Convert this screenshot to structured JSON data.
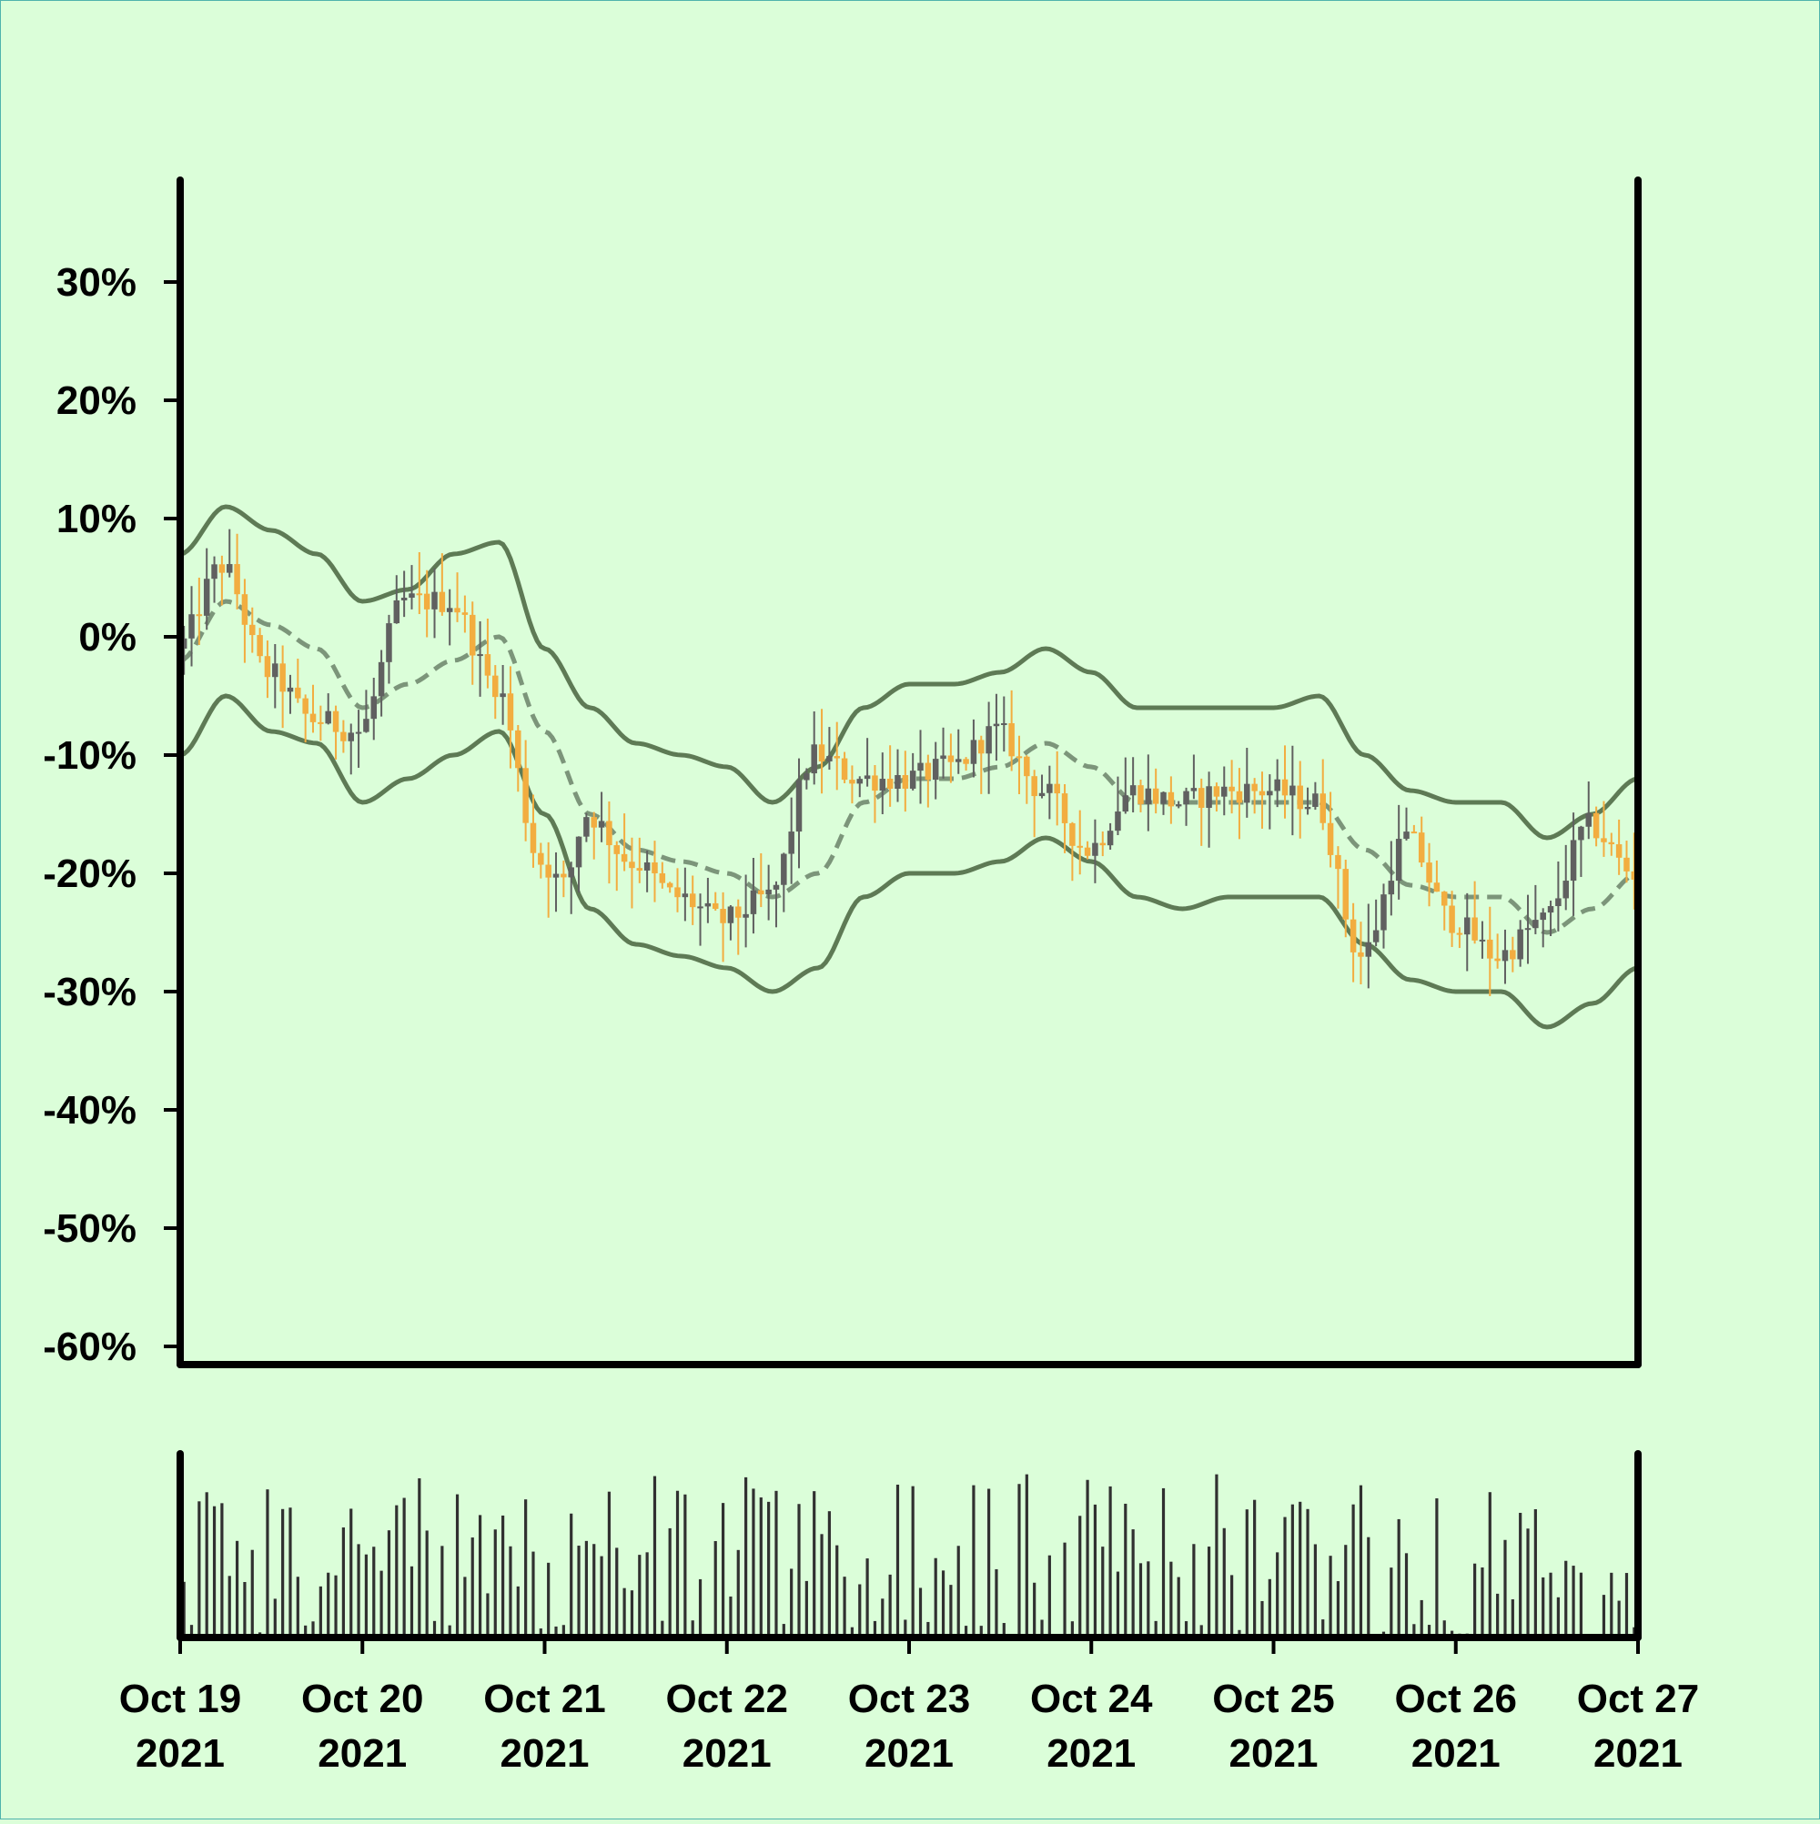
{
  "colors": {
    "background": "#dbfed9",
    "border": "#4fb3ad",
    "axis": "#000000",
    "up_candle": "#606060",
    "down_candle": "#f2ad40",
    "band": "#5e7a55",
    "band_mid": "#7c957a",
    "volume": "#303030"
  },
  "chart_data": {
    "type": "candlestick",
    "title": "",
    "xlabel": "",
    "ylabel": "",
    "y_unit": "percent change",
    "ylim": [
      -60,
      38
    ],
    "y_ticks": [
      "30%",
      "20%",
      "10%",
      "0%",
      "-10%",
      "-20%",
      "-30%",
      "-40%",
      "-50%",
      "-60%"
    ],
    "y_tick_values": [
      30,
      20,
      10,
      0,
      -10,
      -20,
      -30,
      -40,
      -50,
      -60
    ],
    "x_range": [
      "2021-10-19 00:00",
      "2021-10-27 00:00"
    ],
    "x_tick_labels": [
      {
        "month_day": "Oct 19",
        "year": "2021"
      },
      {
        "month_day": "Oct 20",
        "year": "2021"
      },
      {
        "month_day": "Oct 21",
        "year": "2021"
      },
      {
        "month_day": "Oct 22",
        "year": "2021"
      },
      {
        "month_day": "Oct 23",
        "year": "2021"
      },
      {
        "month_day": "Oct 24",
        "year": "2021"
      },
      {
        "month_day": "Oct 25",
        "year": "2021"
      },
      {
        "month_day": "Oct 26",
        "year": "2021"
      },
      {
        "month_day": "Oct 27",
        "year": "2021"
      }
    ],
    "candle_interval_hours": 1,
    "close_path": [
      [
        "2021-10-19 00:00",
        -1
      ],
      [
        "2021-10-19 06:00",
        6
      ],
      [
        "2021-10-19 12:00",
        -3
      ],
      [
        "2021-10-19 18:00",
        -7
      ],
      [
        "2021-10-20 00:00",
        -8
      ],
      [
        "2021-10-20 06:00",
        3
      ],
      [
        "2021-10-20 12:00",
        3
      ],
      [
        "2021-10-20 18:00",
        -4
      ],
      [
        "2021-10-21 00:00",
        -19
      ],
      [
        "2021-10-21 03:00",
        -21
      ],
      [
        "2021-10-21 06:00",
        -15
      ],
      [
        "2021-10-21 12:00",
        -19
      ],
      [
        "2021-10-21 18:00",
        -22
      ],
      [
        "2021-10-22 00:00",
        -24
      ],
      [
        "2021-10-22 06:00",
        -22
      ],
      [
        "2021-10-22 12:00",
        -10
      ],
      [
        "2021-10-22 18:00",
        -12
      ],
      [
        "2021-10-23 00:00",
        -12
      ],
      [
        "2021-10-23 06:00",
        -11
      ],
      [
        "2021-10-23 12:00",
        -8
      ],
      [
        "2021-10-23 18:00",
        -13
      ],
      [
        "2021-10-24 00:00",
        -18
      ],
      [
        "2021-10-24 06:00",
        -13
      ],
      [
        "2021-10-24 12:00",
        -14
      ],
      [
        "2021-10-24 18:00",
        -13
      ],
      [
        "2021-10-25 00:00",
        -13
      ],
      [
        "2021-10-25 06:00",
        -14
      ],
      [
        "2021-10-25 12:00",
        -27
      ],
      [
        "2021-10-25 18:00",
        -17
      ],
      [
        "2021-10-26 00:00",
        -24
      ],
      [
        "2021-10-26 06:00",
        -27
      ],
      [
        "2021-10-26 12:00",
        -24
      ],
      [
        "2021-10-26 18:00",
        -16
      ],
      [
        "2021-10-27 00:00",
        -20
      ]
    ],
    "bands": {
      "upper": [
        [
          "2021-10-19 00:00",
          7
        ],
        [
          "2021-10-19 06:00",
          11
        ],
        [
          "2021-10-19 12:00",
          9
        ],
        [
          "2021-10-19 18:00",
          7
        ],
        [
          "2021-10-20 00:00",
          3
        ],
        [
          "2021-10-20 06:00",
          4
        ],
        [
          "2021-10-20 12:00",
          7
        ],
        [
          "2021-10-20 18:00",
          8
        ],
        [
          "2021-10-21 00:00",
          -1
        ],
        [
          "2021-10-21 06:00",
          -6
        ],
        [
          "2021-10-21 12:00",
          -9
        ],
        [
          "2021-10-21 18:00",
          -10
        ],
        [
          "2021-10-22 00:00",
          -11
        ],
        [
          "2021-10-22 06:00",
          -14
        ],
        [
          "2021-10-22 12:00",
          -11
        ],
        [
          "2021-10-22 18:00",
          -6
        ],
        [
          "2021-10-23 00:00",
          -4
        ],
        [
          "2021-10-23 06:00",
          -4
        ],
        [
          "2021-10-23 12:00",
          -3
        ],
        [
          "2021-10-23 18:00",
          -1
        ],
        [
          "2021-10-24 00:00",
          -3
        ],
        [
          "2021-10-24 06:00",
          -6
        ],
        [
          "2021-10-24 12:00",
          -6
        ],
        [
          "2021-10-24 18:00",
          -6
        ],
        [
          "2021-10-25 00:00",
          -6
        ],
        [
          "2021-10-25 06:00",
          -5
        ],
        [
          "2021-10-25 12:00",
          -10
        ],
        [
          "2021-10-25 18:00",
          -13
        ],
        [
          "2021-10-26 00:00",
          -14
        ],
        [
          "2021-10-26 06:00",
          -14
        ],
        [
          "2021-10-26 12:00",
          -17
        ],
        [
          "2021-10-26 18:00",
          -15
        ],
        [
          "2021-10-27 00:00",
          -12
        ]
      ],
      "middle": [
        [
          "2021-10-19 00:00",
          -2
        ],
        [
          "2021-10-19 06:00",
          3
        ],
        [
          "2021-10-19 12:00",
          1
        ],
        [
          "2021-10-19 18:00",
          -1
        ],
        [
          "2021-10-20 00:00",
          -6
        ],
        [
          "2021-10-20 06:00",
          -4
        ],
        [
          "2021-10-20 12:00",
          -2
        ],
        [
          "2021-10-20 18:00",
          0
        ],
        [
          "2021-10-21 00:00",
          -8
        ],
        [
          "2021-10-21 06:00",
          -15
        ],
        [
          "2021-10-21 12:00",
          -18
        ],
        [
          "2021-10-21 18:00",
          -19
        ],
        [
          "2021-10-22 00:00",
          -20
        ],
        [
          "2021-10-22 06:00",
          -22
        ],
        [
          "2021-10-22 12:00",
          -20
        ],
        [
          "2021-10-22 18:00",
          -14
        ],
        [
          "2021-10-23 00:00",
          -12
        ],
        [
          "2021-10-23 06:00",
          -12
        ],
        [
          "2021-10-23 12:00",
          -11
        ],
        [
          "2021-10-23 18:00",
          -9
        ],
        [
          "2021-10-24 00:00",
          -11
        ],
        [
          "2021-10-24 06:00",
          -14
        ],
        [
          "2021-10-24 12:00",
          -14
        ],
        [
          "2021-10-24 18:00",
          -14
        ],
        [
          "2021-10-25 00:00",
          -14
        ],
        [
          "2021-10-25 06:00",
          -14
        ],
        [
          "2021-10-25 12:00",
          -18
        ],
        [
          "2021-10-25 18:00",
          -21
        ],
        [
          "2021-10-26 00:00",
          -22
        ],
        [
          "2021-10-26 06:00",
          -22
        ],
        [
          "2021-10-26 12:00",
          -25
        ],
        [
          "2021-10-26 18:00",
          -23
        ],
        [
          "2021-10-27 00:00",
          -20
        ]
      ],
      "lower": [
        [
          "2021-10-19 00:00",
          -10
        ],
        [
          "2021-10-19 06:00",
          -5
        ],
        [
          "2021-10-19 12:00",
          -8
        ],
        [
          "2021-10-19 18:00",
          -9
        ],
        [
          "2021-10-20 00:00",
          -14
        ],
        [
          "2021-10-20 06:00",
          -12
        ],
        [
          "2021-10-20 12:00",
          -10
        ],
        [
          "2021-10-20 18:00",
          -8
        ],
        [
          "2021-10-21 00:00",
          -15
        ],
        [
          "2021-10-21 06:00",
          -23
        ],
        [
          "2021-10-21 12:00",
          -26
        ],
        [
          "2021-10-21 18:00",
          -27
        ],
        [
          "2021-10-22 00:00",
          -28
        ],
        [
          "2021-10-22 06:00",
          -30
        ],
        [
          "2021-10-22 12:00",
          -28
        ],
        [
          "2021-10-22 18:00",
          -22
        ],
        [
          "2021-10-23 00:00",
          -20
        ],
        [
          "2021-10-23 06:00",
          -20
        ],
        [
          "2021-10-23 12:00",
          -19
        ],
        [
          "2021-10-23 18:00",
          -17
        ],
        [
          "2021-10-24 00:00",
          -19
        ],
        [
          "2021-10-24 06:00",
          -22
        ],
        [
          "2021-10-24 12:00",
          -23
        ],
        [
          "2021-10-24 18:00",
          -22
        ],
        [
          "2021-10-25 00:00",
          -22
        ],
        [
          "2021-10-25 06:00",
          -22
        ],
        [
          "2021-10-25 12:00",
          -26
        ],
        [
          "2021-10-25 18:00",
          -29
        ],
        [
          "2021-10-26 00:00",
          -30
        ],
        [
          "2021-10-26 06:00",
          -30
        ],
        [
          "2021-10-26 12:00",
          -33
        ],
        [
          "2021-10-26 18:00",
          -31
        ],
        [
          "2021-10-27 00:00",
          -28
        ]
      ]
    },
    "volume_panel": {
      "y_axis_labels": false,
      "bars_per_day": 24
    },
    "grid": false,
    "legend": "none"
  }
}
